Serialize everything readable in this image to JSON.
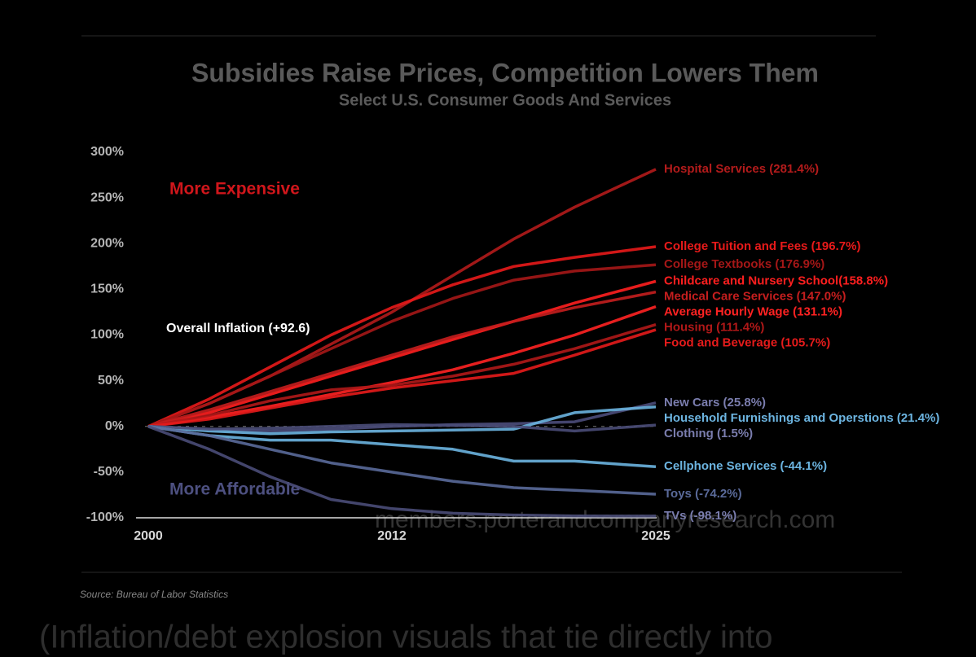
{
  "chart_data": {
    "type": "line",
    "title": "Subsidies Raise Prices, Competition Lowers Them",
    "subtitle": "Select U.S. Consumer Goods And Services",
    "source": "Source: Bureau of Labor Statistics",
    "annotations": [
      "More Expensive",
      "More Affordable",
      "Overall Inflation (+92.6)"
    ],
    "watermark": "members.porterandcompanyresearch.com",
    "caption": "(Inflation/debt explosion visuals that tie directly into",
    "grid": false,
    "xlim": [
      2000,
      2025
    ],
    "xticks": [
      2000,
      2012,
      2025
    ],
    "ylim": [
      -100,
      300
    ],
    "yticks": [
      {
        "value": -100,
        "label": "-100%"
      },
      {
        "value": -50,
        "label": "-50%"
      },
      {
        "value": 0,
        "label": "0%"
      },
      {
        "value": 50,
        "label": "50%"
      },
      {
        "value": 100,
        "label": "100%"
      },
      {
        "value": 150,
        "label": "150%"
      },
      {
        "value": 200,
        "label": "200%"
      },
      {
        "value": 250,
        "label": "250%"
      },
      {
        "value": 300,
        "label": "300%"
      }
    ],
    "x": [
      2000,
      2003,
      2006,
      2009,
      2012,
      2015,
      2018,
      2021,
      2025
    ],
    "series": [
      {
        "name": "Hospital Services (281.4%)",
        "color": "#b31b1b",
        "values": [
          0,
          25,
          55,
          90,
          125,
          165,
          205,
          240,
          281.4
        ]
      },
      {
        "name": "College Tuition and Fees (196.7%)",
        "color": "#e81a1a",
        "values": [
          0,
          30,
          65,
          100,
          130,
          155,
          175,
          185,
          196.7
        ]
      },
      {
        "name": "College Textbooks (176.9%)",
        "color": "#a51717",
        "values": [
          0,
          25,
          55,
          85,
          115,
          140,
          160,
          170,
          176.9
        ]
      },
      {
        "name": "Childcare and Nursery School(158.8%)",
        "color": "#ff1f1f",
        "values": [
          0,
          15,
          35,
          55,
          75,
          95,
          115,
          135,
          158.8
        ]
      },
      {
        "name": "Medical Care Services (147.0%)",
        "color": "#c41e1e",
        "values": [
          0,
          18,
          38,
          58,
          78,
          98,
          115,
          130,
          147.0
        ]
      },
      {
        "name": "Average Hourly Wage (131.1%)",
        "color": "#ff2222",
        "values": [
          0,
          10,
          22,
          35,
          48,
          62,
          80,
          100,
          131.1
        ]
      },
      {
        "name": "Housing (111.4%)",
        "color": "#b01818",
        "values": [
          0,
          12,
          28,
          40,
          45,
          55,
          68,
          85,
          111.4
        ]
      },
      {
        "name": "Food and Beverage (105.7%)",
        "color": "#e51b1b",
        "values": [
          0,
          8,
          20,
          32,
          42,
          50,
          58,
          78,
          105.7
        ]
      },
      {
        "name": "New Cars (25.8%)",
        "color": "#4b4d7a",
        "values": [
          0,
          -3,
          -5,
          -3,
          0,
          2,
          3,
          5,
          25.8
        ]
      },
      {
        "name": "Household Furnishings and Operstions (21.4%)",
        "color": "#6cb4e0",
        "values": [
          0,
          -5,
          -8,
          -6,
          -5,
          -4,
          -3,
          15,
          21.4
        ]
      },
      {
        "name": "Clothing (1.5%)",
        "color": "#4a4c78",
        "values": [
          0,
          -3,
          -2,
          0,
          2,
          1,
          0,
          -5,
          1.5
        ]
      },
      {
        "name": "Cellphone Services (-44.1%)",
        "color": "#6cb4e0",
        "values": [
          0,
          -10,
          -15,
          -15,
          -20,
          -25,
          -38,
          -38,
          -44.1
        ]
      },
      {
        "name": "Toys (-74.2%)",
        "color": "#5a6a9a",
        "values": [
          0,
          -10,
          -25,
          -40,
          -50,
          -60,
          -67,
          -70,
          -74.2
        ]
      },
      {
        "name": "TVs (-98.1%)",
        "color": "#4a4c78",
        "values": [
          0,
          -25,
          -55,
          -80,
          -90,
          -95,
          -97,
          -98,
          -98.1
        ]
      }
    ]
  }
}
